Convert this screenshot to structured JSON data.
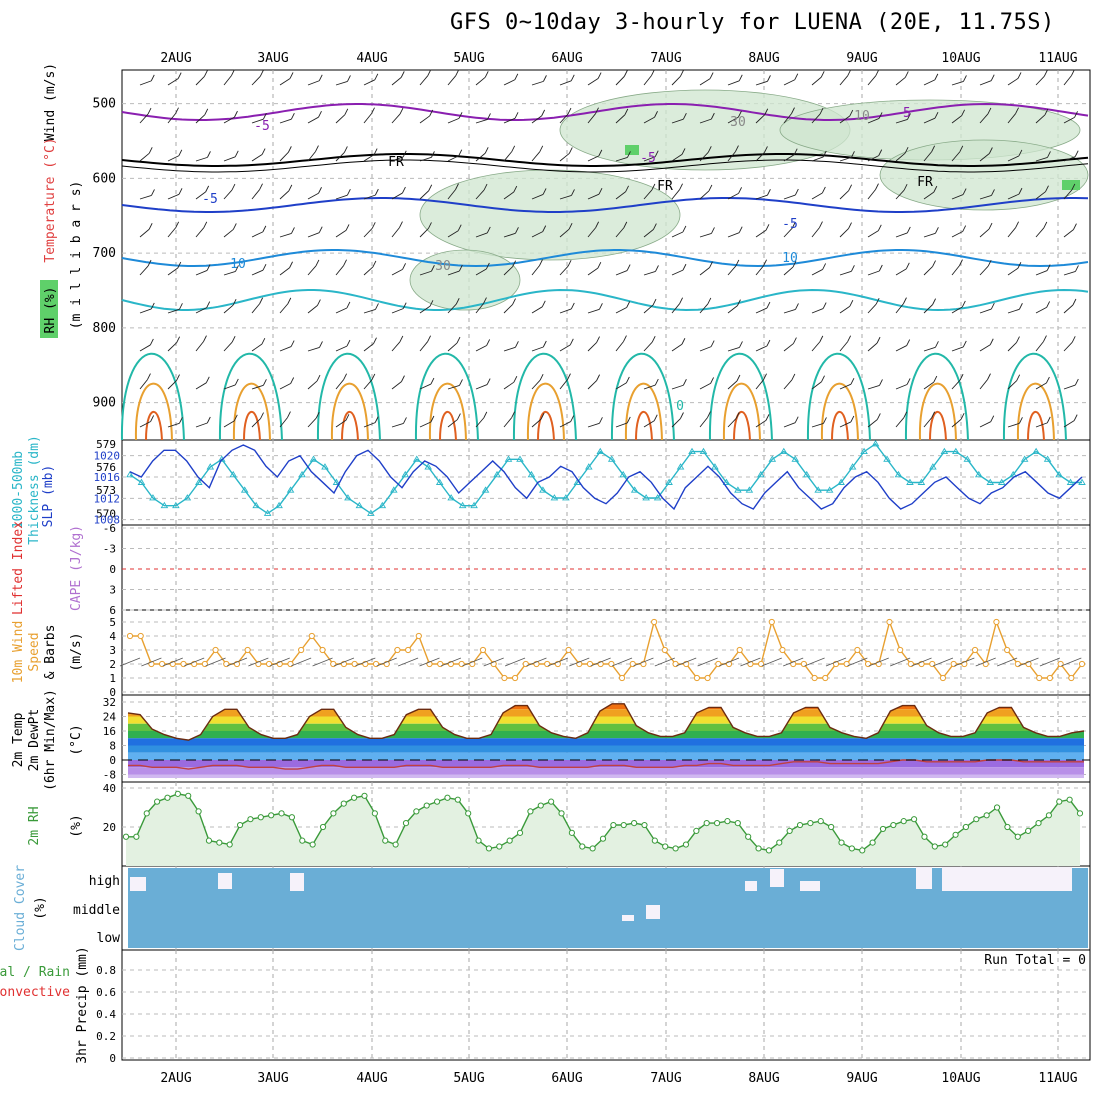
{
  "title": "GFS 0~10day 3-hourly for LUENA (20E, 11.75S)",
  "dates": [
    "2AUG",
    "3AUG",
    "4AUG",
    "5AUG",
    "6AUG",
    "7AUG",
    "8AUG",
    "9AUG",
    "10AUG",
    "11AUG"
  ],
  "panels": {
    "upper": {
      "labels": {
        "wind": "Wind (m/s)",
        "temp": "Temperature (°C)",
        "rh": "RH (%)",
        "mb": "(m i l l i b a r s)"
      },
      "yticks": [
        "500",
        "600",
        "700",
        "800",
        "900"
      ],
      "contour_labels": [
        "-5",
        "-5",
        "-5",
        "FR",
        "FR",
        "FR",
        "-5",
        "-5",
        "10",
        "10",
        "0",
        "30",
        "30",
        "10"
      ]
    },
    "thick": {
      "labels": {
        "thick": "1000-500mb",
        "thick2": "Thickness (dm)",
        "slp": "SLP (mb)"
      },
      "left_ticks": [
        "579",
        "576",
        "573",
        "570"
      ],
      "right_ticks": [
        "1020",
        "1016",
        "1012",
        "1008"
      ]
    },
    "li": {
      "labels": {
        "li": "Lifted Index",
        "cape": "CAPE (J/kg)"
      },
      "ticks": [
        "-6",
        "-3",
        "0",
        "3",
        "6"
      ]
    },
    "wind10": {
      "labels": {
        "a": "10m Wind",
        "b": "Speed",
        "c": "& Barbs",
        "unit": "(m/s)"
      },
      "ticks": [
        "5",
        "4",
        "3",
        "2",
        "1",
        "0"
      ]
    },
    "temp2m": {
      "labels": {
        "a": "2m Temp",
        "b": "2m DewPt",
        "c": "(6hr Min/Max)",
        "unit": "(°C)"
      },
      "ticks": [
        "32",
        "24",
        "16",
        "8",
        "0",
        "-8"
      ]
    },
    "rh2m": {
      "labels": {
        "a": "2m RH",
        "unit": "(%)"
      },
      "ticks": [
        "40",
        "20"
      ]
    },
    "cloud": {
      "labels": {
        "a": "Cloud Cover",
        "unit": "(%)"
      },
      "levels": [
        "high",
        "middle",
        "low"
      ]
    },
    "precip": {
      "labels": {
        "a": "Total / Rain",
        "b": "Convective",
        "c": "3hr Precip (mm)"
      },
      "ticks": [
        "0.8",
        "0.6",
        "0.4",
        "0.2",
        "0"
      ],
      "run_total": "Run Total = 0"
    }
  },
  "colors": {
    "slp": "#1f3fc8",
    "thick": "#2ab6c8",
    "wind": "#e8a030",
    "rh": "#3a9a3a",
    "cloud": "#6aaed6",
    "li": "#e03030",
    "cape": "#b070d0"
  },
  "chart_data": [
    {
      "type": "line",
      "title": "1000-500mb Thickness / SLP",
      "x_unit": "3-hourly steps from 1AUG",
      "series": [
        {
          "name": "SLP (mb)",
          "values": [
            1017,
            1016,
            1019,
            1021,
            1021,
            1019,
            1016,
            1014,
            1019,
            1021,
            1022,
            1021,
            1018,
            1016,
            1019,
            1020,
            1017,
            1015,
            1013,
            1017,
            1020,
            1021,
            1019,
            1016,
            1014,
            1017,
            1019,
            1018,
            1016,
            1013,
            1015,
            1017,
            1019,
            1017,
            1014,
            1012,
            1015,
            1016,
            1018,
            1017,
            1014,
            1012,
            1011,
            1013,
            1016,
            1017,
            1015,
            1012,
            1010,
            1014,
            1016,
            1018,
            1016,
            1013,
            1011,
            1010,
            1013,
            1015,
            1017,
            1014,
            1012,
            1010,
            1011,
            1014,
            1016,
            1017,
            1015,
            1012,
            1010,
            1011,
            1013,
            1015,
            1016,
            1014,
            1012,
            1011,
            1013,
            1014,
            1016,
            1017,
            1015,
            1013,
            1012,
            1014,
            1016
          ]
        },
        {
          "name": "1000-500mb Thickness (dm)",
          "values": [
            575,
            574,
            572,
            571,
            571,
            572,
            574,
            576,
            577,
            575,
            573,
            571,
            570,
            571,
            573,
            575,
            577,
            576,
            574,
            572,
            571,
            570,
            571,
            573,
            575,
            577,
            576,
            574,
            572,
            571,
            571,
            573,
            575,
            577,
            577,
            575,
            573,
            572,
            572,
            574,
            576,
            578,
            577,
            575,
            573,
            572,
            572,
            574,
            576,
            578,
            578,
            576,
            574,
            573,
            573,
            575,
            577,
            578,
            577,
            575,
            573,
            573,
            574,
            576,
            578,
            579,
            577,
            575,
            574,
            574,
            576,
            578,
            578,
            577,
            575,
            574,
            574,
            575,
            577,
            578,
            577,
            575,
            574,
            574
          ]
        }
      ]
    },
    {
      "type": "line",
      "title": "10m Wind Speed",
      "series": [
        {
          "name": "10m Wind Speed (m/s)",
          "values": [
            4,
            4,
            2,
            2,
            2,
            2,
            2,
            2,
            3,
            2,
            2,
            3,
            2,
            2,
            2,
            2,
            3,
            4,
            3,
            2,
            2,
            2,
            2,
            2,
            2,
            3,
            3,
            4,
            2,
            2,
            2,
            2,
            2,
            3,
            2,
            1,
            1,
            2,
            2,
            2,
            2,
            3,
            2,
            2,
            2,
            2,
            1,
            2,
            2,
            5,
            3,
            2,
            2,
            1,
            1,
            2,
            2,
            3,
            2,
            2,
            5,
            3,
            2,
            2,
            1,
            1,
            2,
            2,
            3,
            2,
            2,
            5,
            3,
            2,
            2,
            2,
            1,
            2,
            2,
            3,
            2,
            5,
            3,
            2,
            2,
            1,
            1,
            2,
            1,
            2
          ]
        }
      ]
    },
    {
      "type": "area",
      "title": "2m Temp",
      "series": [
        {
          "name": "2m Temp (°C)",
          "values": [
            26,
            25,
            17,
            14,
            12,
            11,
            14,
            24,
            28,
            28,
            18,
            14,
            12,
            12,
            14,
            24,
            28,
            28,
            18,
            14,
            12,
            12,
            14,
            25,
            28,
            28,
            18,
            14,
            12,
            12,
            14,
            26,
            30,
            30,
            19,
            15,
            13,
            12,
            15,
            27,
            31,
            31,
            19,
            15,
            13,
            13,
            15,
            26,
            29,
            29,
            18,
            15,
            13,
            13,
            15,
            26,
            29,
            29,
            18,
            15,
            13,
            12,
            15,
            27,
            30,
            30,
            19,
            15,
            13,
            13,
            15,
            26,
            29,
            29,
            18,
            15,
            13,
            13,
            15,
            16
          ]
        },
        {
          "name": "2m DewPt (°C)",
          "values": [
            -3,
            -3,
            -4,
            -4,
            -4,
            -5,
            -4,
            -3,
            -3,
            -3,
            -4,
            -4,
            -4,
            -5,
            -5,
            -4,
            -3,
            -3,
            -4,
            -4,
            -4,
            -4,
            -4,
            -3,
            -3,
            -3,
            -4,
            -4,
            -4,
            -4,
            -4,
            -3,
            -3,
            -3,
            -4,
            -4,
            -4,
            -4,
            -4,
            -3,
            -3,
            -3,
            -4,
            -4,
            -4,
            -4,
            -3,
            -3,
            -2,
            -2,
            -3,
            -3,
            -3,
            -3,
            -2,
            -1,
            -1,
            -1,
            -2,
            -2,
            -2,
            -2,
            -2,
            -1,
            0,
            0,
            -1,
            -1,
            -1,
            -1,
            -1,
            0,
            0,
            0,
            -1,
            -1,
            -1,
            -1,
            -1,
            -1
          ]
        }
      ]
    },
    {
      "type": "area",
      "title": "2m RH",
      "series": [
        {
          "name": "2m RH (%)",
          "values": [
            15,
            15,
            27,
            33,
            35,
            37,
            36,
            28,
            13,
            12,
            11,
            21,
            24,
            25,
            26,
            27,
            25,
            13,
            11,
            20,
            27,
            32,
            35,
            36,
            27,
            13,
            11,
            22,
            28,
            31,
            33,
            35,
            34,
            27,
            13,
            9,
            10,
            13,
            17,
            28,
            31,
            33,
            27,
            17,
            10,
            9,
            14,
            21,
            21,
            22,
            21,
            13,
            10,
            9,
            11,
            18,
            22,
            22,
            23,
            22,
            15,
            9,
            8,
            12,
            18,
            21,
            22,
            23,
            20,
            12,
            9,
            8,
            12,
            19,
            21,
            23,
            24,
            15,
            10,
            11,
            16,
            20,
            24,
            26,
            30,
            20,
            15,
            18,
            22,
            26,
            33,
            34,
            27
          ]
        }
      ]
    },
    {
      "type": "bar",
      "title": "3hr Precip",
      "ylabel": "3hr Precip (mm)",
      "ylim": [
        0,
        1
      ],
      "series": [
        {
          "name": "Total / Rain",
          "values": [
            0,
            0,
            0,
            0,
            0,
            0,
            0,
            0,
            0,
            0
          ]
        },
        {
          "name": "Convective",
          "values": [
            0,
            0,
            0,
            0,
            0,
            0,
            0,
            0,
            0,
            0
          ]
        }
      ]
    }
  ]
}
